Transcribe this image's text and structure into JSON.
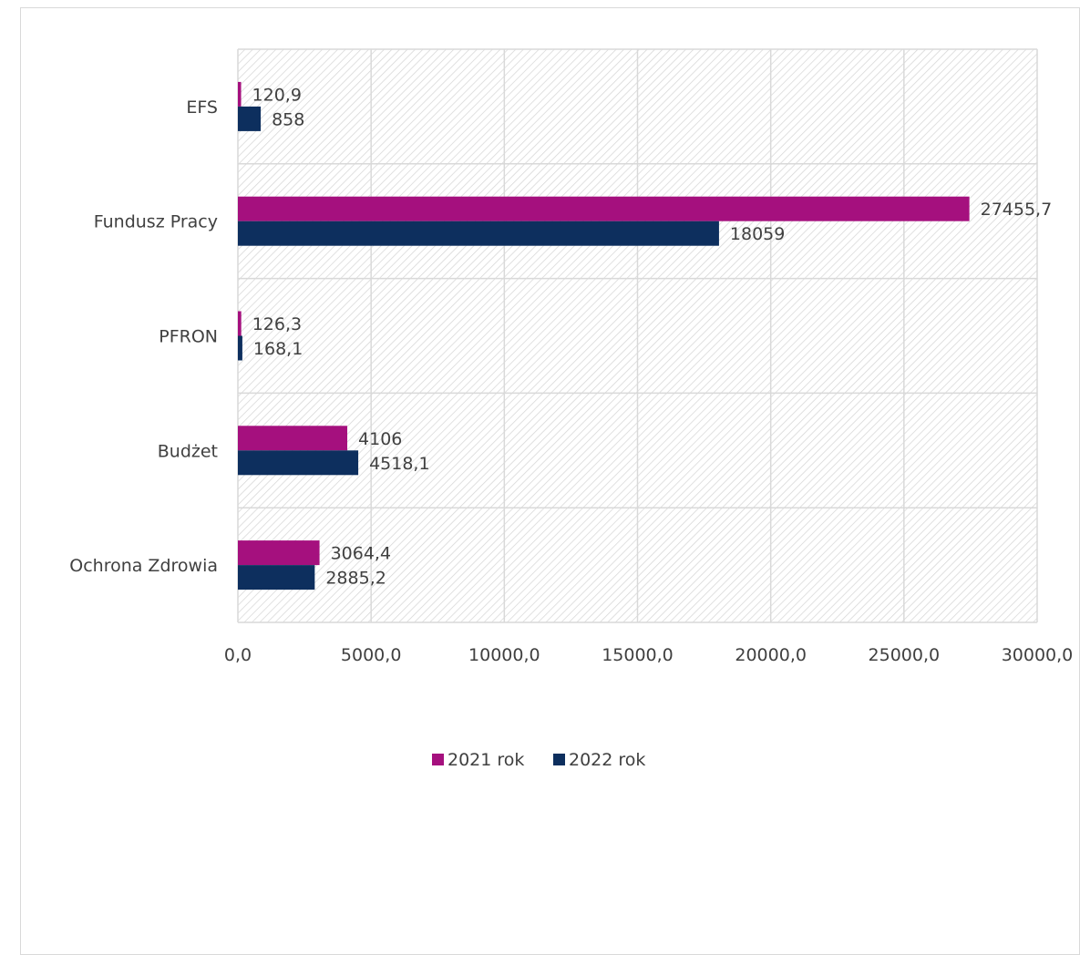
{
  "chart_data": {
    "type": "bar",
    "orientation": "horizontal",
    "categories": [
      "EFS",
      "Fundusz Pracy",
      "PFRON",
      "Budżet",
      "Ochrona Zdrowia"
    ],
    "series": [
      {
        "name": "2021 rok",
        "color": "#a5107e",
        "values": [
          120.9,
          27455.7,
          126.3,
          4106,
          3064.4
        ],
        "labels": [
          "120,9",
          "27455,7",
          "126,3",
          "4106",
          "3064,4"
        ]
      },
      {
        "name": "2022 rok",
        "color": "#0d2f5e",
        "values": [
          858,
          18059,
          168.1,
          4518.1,
          2885.2
        ],
        "labels": [
          "858",
          "18059",
          "168,1",
          "4518,1",
          "2885,2"
        ]
      }
    ],
    "xlim": [
      0,
      30000
    ],
    "xticks": [
      0,
      5000,
      10000,
      15000,
      20000,
      25000,
      30000
    ],
    "xtick_labels": [
      "0,0",
      "5000,0",
      "10000,0",
      "15000,0",
      "20000,0",
      "25000,0",
      "30000,0"
    ],
    "legend_position": "bottom",
    "grid": true,
    "plot_background": "hatched"
  }
}
